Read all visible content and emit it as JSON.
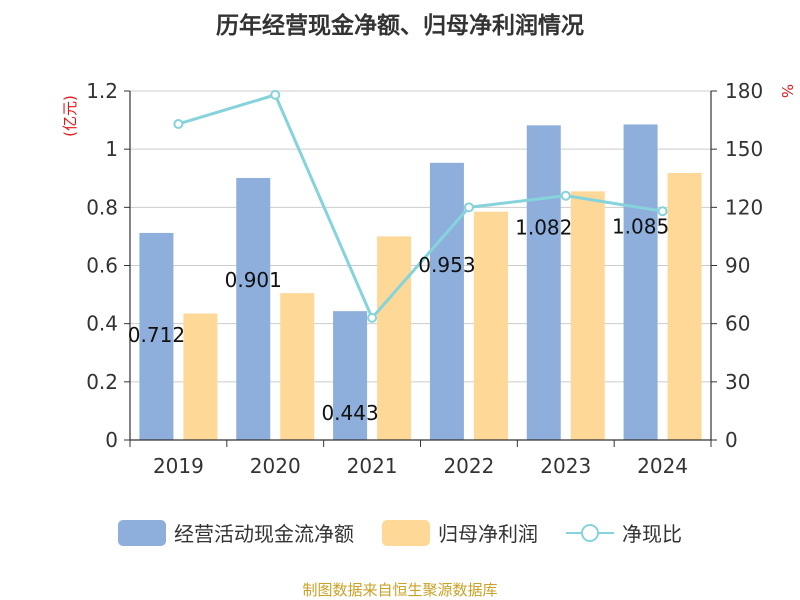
{
  "chart_data": {
    "type": "bar+line",
    "title": "历年经营现金净额、归母净利润情况",
    "categories": [
      "2019",
      "2020",
      "2021",
      "2022",
      "2023",
      "2024"
    ],
    "series": [
      {
        "name": "经营活动现金流净额",
        "axis": "left",
        "type": "bar",
        "color": "#8eaedc",
        "values": [
          0.712,
          0.901,
          0.443,
          0.953,
          1.082,
          1.085
        ],
        "labels": [
          "0.712",
          "0.901",
          "0.443",
          "0.953",
          "1.082",
          "1.085"
        ]
      },
      {
        "name": "归母净利润",
        "axis": "left",
        "type": "bar",
        "color": "#fdd896",
        "values": [
          0.435,
          0.505,
          0.7,
          0.785,
          0.855,
          0.918
        ]
      },
      {
        "name": "净现比",
        "axis": "right",
        "type": "line",
        "color": "#86d3dc",
        "values": [
          163,
          178,
          63,
          120,
          126,
          118
        ]
      }
    ],
    "y_left": {
      "label": "(亿元)",
      "min": 0,
      "max": 1.2,
      "ticks": [
        "0",
        "0.2",
        "0.4",
        "0.6",
        "0.8",
        "1",
        "1.2"
      ]
    },
    "y_right": {
      "label": "%",
      "min": 0,
      "max": 180,
      "ticks": [
        "0",
        "30",
        "60",
        "90",
        "120",
        "150",
        "180"
      ]
    },
    "grid": true,
    "legend": "bottom"
  },
  "source": "制图数据来自恒生聚源数据库"
}
